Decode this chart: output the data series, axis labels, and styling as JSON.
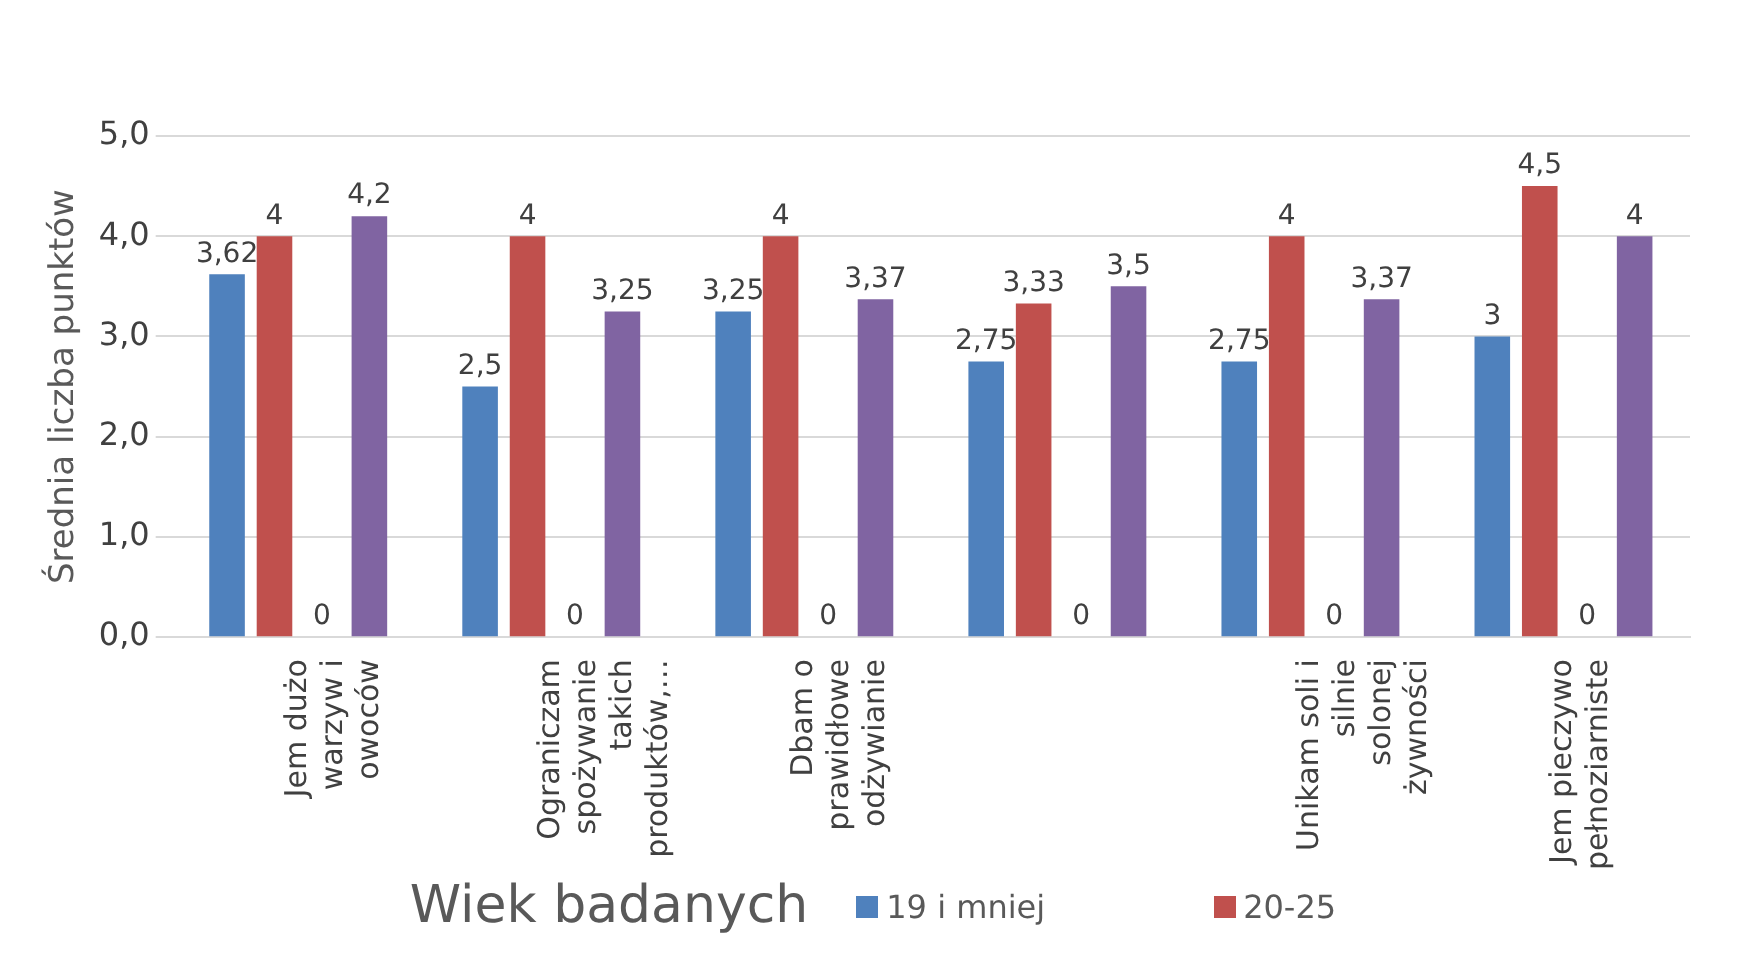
{
  "chart_data": {
    "type": "bar",
    "ylabel": "Średnia liczba punktów",
    "legend_title": "Wiek badanych",
    "legend": "bottom",
    "grid": "y",
    "categories": [
      "Jem dużo warzyw i owoców",
      "Ograniczam spożywanie takich produktów,…",
      "Dbam o prawidłowe odżywianie",
      null,
      "Unikam soli i silnie solonej żywności",
      "Jem pieczywo pełnoziarniste"
    ],
    "series": [
      {
        "name": "19 i mniej",
        "color": "#4f81bd",
        "values": [
          3.62,
          2.5,
          3.25,
          2.75,
          2.75,
          3
        ],
        "value_labels": [
          "3,62",
          "2,5",
          "3,25",
          "2,75",
          "2,75",
          "3"
        ]
      },
      {
        "name": "20-25",
        "color": "#c0504d",
        "values": [
          4,
          4,
          4,
          3.33,
          4,
          4.5
        ],
        "value_labels": [
          "4",
          "4",
          "4",
          "3,33",
          "4",
          "4,5"
        ]
      },
      {
        "color": "#9bbb59",
        "values": [
          0,
          0,
          0,
          0,
          0,
          0
        ],
        "value_labels": [
          "0",
          "0",
          "0",
          "0",
          "0",
          "0"
        ]
      },
      {
        "color": "#8064a2",
        "values": [
          4.2,
          3.25,
          3.37,
          3.5,
          3.37,
          4
        ],
        "value_labels": [
          "4,2",
          "3,25",
          "3,37",
          "3,5",
          "3,37",
          "4"
        ]
      }
    ],
    "ylim": [
      0,
      5
    ],
    "yticks": [
      {
        "value": 0,
        "label": "0,0"
      },
      {
        "value": 1,
        "label": "1,0"
      },
      {
        "value": 2,
        "label": "2,0"
      },
      {
        "value": 3,
        "label": "3,0"
      },
      {
        "value": 4,
        "label": "4,0"
      },
      {
        "value": 5,
        "label": "5,0"
      }
    ]
  }
}
